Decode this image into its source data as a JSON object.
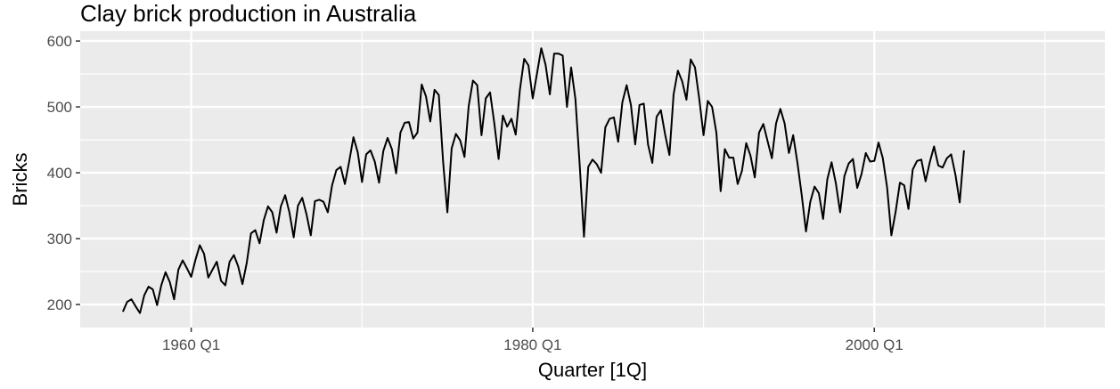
{
  "chart_data": {
    "type": "line",
    "title": "Clay brick production in Australia",
    "xlabel": "Quarter [1Q]",
    "ylabel": "Bricks",
    "x_tick_labels": [
      "1960 Q1",
      "1980 Q1",
      "2000 Q1"
    ],
    "x_tick_years": [
      1960,
      1980,
      2000
    ],
    "y_ticks": [
      200,
      300,
      400,
      500,
      600
    ],
    "xlim": [
      1953.5,
      2013.5
    ],
    "ylim": [
      165,
      615
    ],
    "grid": true,
    "legend": "none",
    "colors": {
      "panel": "#ebebeb",
      "grid": "#ffffff",
      "line": "#000000",
      "tick_text": "#4d4d4d"
    },
    "series": [
      {
        "start": "1956 Q1",
        "frequency": "quarterly",
        "values": [
          189,
          204,
          208,
          197,
          187,
          214,
          227,
          223,
          199,
          229,
          249,
          234,
          208,
          253,
          267,
          255,
          242,
          268,
          290,
          277,
          241,
          253,
          265,
          236,
          229,
          265,
          275,
          258,
          231,
          263,
          308,
          313,
          293,
          328,
          349,
          340,
          309,
          349,
          366,
          340,
          302,
          350,
          362,
          337,
          305,
          357,
          359,
          356,
          340,
          381,
          404,
          409,
          383,
          417,
          454,
          431,
          386,
          428,
          434,
          417,
          385,
          433,
          453,
          436,
          399,
          461,
          476,
          477,
          452,
          461,
          534,
          516,
          478,
          526,
          518,
          417,
          340,
          437,
          459,
          449,
          424,
          501,
          540,
          533,
          457,
          513,
          522,
          475,
          421,
          487,
          470,
          482,
          458,
          526,
          573,
          563,
          513,
          551,
          589,
          564,
          519,
          581,
          581,
          578,
          500,
          560,
          512,
          412,
          303,
          409,
          420,
          413,
          400,
          469,
          482,
          484,
          447,
          507,
          533,
          503,
          443,
          503,
          505,
          443,
          415,
          485,
          495,
          458,
          427,
          519,
          555,
          539,
          511,
          572,
          560,
          512,
          457,
          509,
          500,
          461,
          372,
          436,
          423,
          423,
          383,
          403,
          445,
          426,
          393,
          461,
          474,
          448,
          422,
          475,
          497,
          475,
          430,
          457,
          415,
          366,
          311,
          356,
          379,
          369,
          330,
          390,
          416,
          384,
          340,
          395,
          414,
          421,
          377,
          398,
          430,
          417,
          418,
          446,
          422,
          378,
          305,
          341,
          385,
          381,
          345,
          405,
          418,
          420,
          387,
          416,
          440,
          411,
          408,
          422,
          428,
          397,
          355,
          434
        ]
      }
    ]
  }
}
